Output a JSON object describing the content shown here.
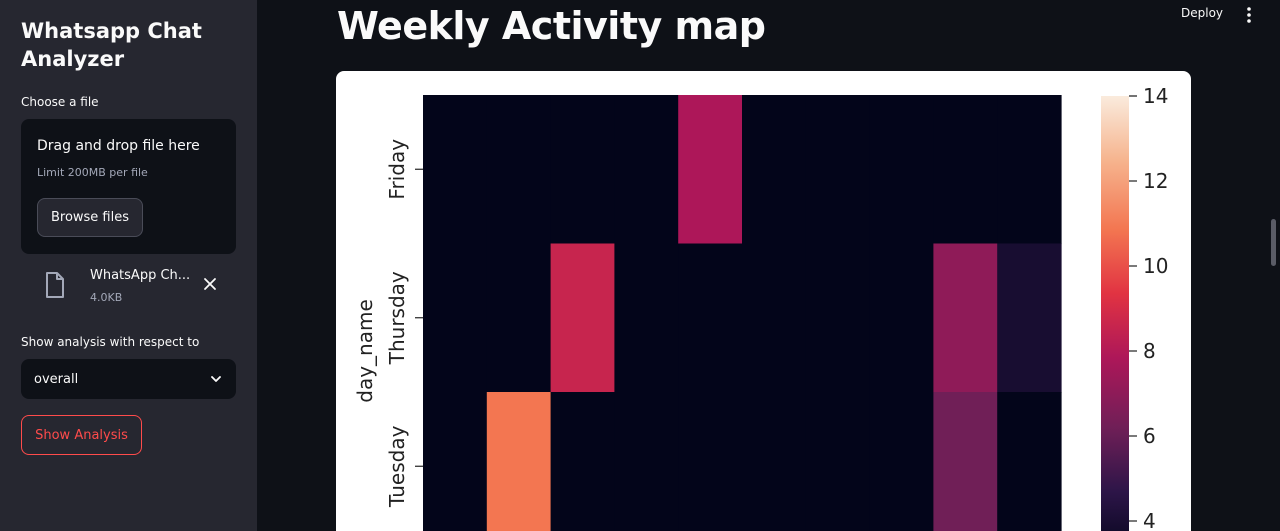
{
  "sidebar": {
    "app_title": "Whatsapp Chat Analyzer",
    "file_label": "Choose a file",
    "dropzone": {
      "title": "Drag and drop file here",
      "limit": "Limit 200MB per file",
      "browse_label": "Browse files"
    },
    "uploaded_file": {
      "name": "WhatsApp Ch...",
      "size": "4.0KB"
    },
    "select_label": "Show analysis with respect to",
    "select_value": "overall",
    "show_button": "Show Analysis"
  },
  "header": {
    "deploy_label": "Deploy"
  },
  "main": {
    "title": "Weekly Activity map"
  },
  "icons": {
    "file": "file-icon",
    "remove": "close-icon",
    "chevron": "chevron-down-icon",
    "menu": "more-vertical-icon"
  },
  "colors": {
    "accent": "#ff4b4b",
    "sidebar_bg": "#262730",
    "app_bg": "#0e1117"
  },
  "chart_data": {
    "type": "heatmap",
    "ylabel": "day_name",
    "rows": [
      "Friday",
      "Thursday",
      "Tuesday"
    ],
    "row_values": [
      [
        0,
        0,
        0,
        0,
        6,
        0,
        0,
        0,
        0,
        0
      ],
      [
        0,
        0,
        7,
        0,
        0,
        0,
        0,
        0,
        5,
        1
      ],
      [
        0,
        10,
        0,
        0,
        0,
        0,
        0,
        0,
        4,
        0
      ]
    ],
    "colorbar_ticks": [
      4,
      6,
      8,
      10,
      12,
      14
    ],
    "colorbar_range": [
      0,
      14
    ]
  }
}
